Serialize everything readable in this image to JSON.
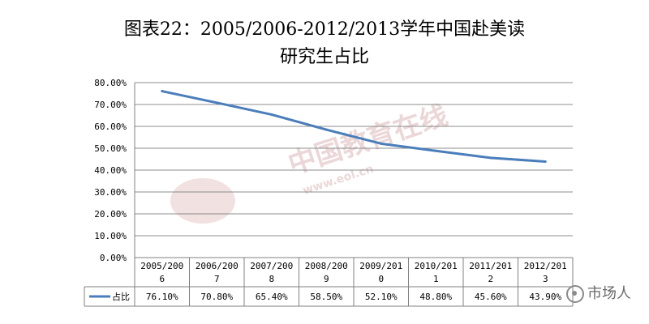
{
  "title_line1": "图表22：2005/2006-2012/2013学年中国赴美读",
  "title_line2": "研究生占比",
  "watermark": {
    "text": "中国教育在线",
    "sub": "www.eol.cn"
  },
  "corner_label": "市场人",
  "chart_data": {
    "type": "line",
    "title": "图表22：2005/2006-2012/2013学年中国赴美读研究生占比",
    "categories": [
      [
        "2005/200",
        "6"
      ],
      [
        "2006/200",
        "7"
      ],
      [
        "2007/200",
        "8"
      ],
      [
        "2008/200",
        "9"
      ],
      [
        "2009/201",
        "0"
      ],
      [
        "2010/201",
        "1"
      ],
      [
        "2011/201",
        "2"
      ],
      [
        "2012/201",
        "3"
      ]
    ],
    "yticks": [
      "0.00%",
      "10.00%",
      "20.00%",
      "30.00%",
      "40.00%",
      "50.00%",
      "60.00%",
      "70.00%",
      "80.00%"
    ],
    "ylim": [
      0,
      80
    ],
    "grid": true,
    "series": [
      {
        "name": "占比",
        "color": "#4a7ebb",
        "values": [
          76.1,
          70.8,
          65.4,
          58.5,
          52.1,
          48.8,
          45.6,
          43.9
        ],
        "labels": [
          "76.10%",
          "70.80%",
          "65.40%",
          "58.50%",
          "52.10%",
          "48.80%",
          "45.60%",
          "43.90%"
        ]
      }
    ],
    "data_table": true
  }
}
